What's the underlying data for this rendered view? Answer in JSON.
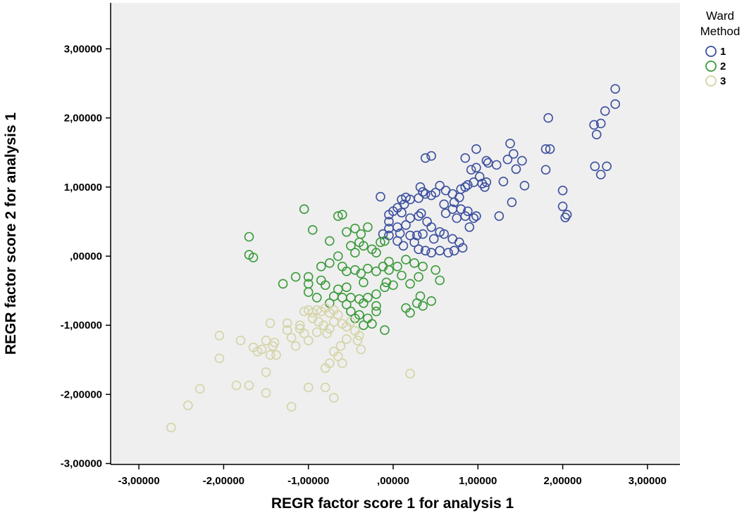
{
  "chart_data": {
    "type": "scatter",
    "xlabel": "REGR factor score   1 for analysis 1",
    "ylabel": "REGR factor score   2 for analysis 1",
    "xlim": [
      -3.3,
      3.4
    ],
    "ylim": [
      -3.0,
      3.6
    ],
    "x_ticks": [
      "-3,00000",
      "-2,00000",
      "-1,00000",
      ",00000",
      "1,00000",
      "2,00000",
      "3,00000"
    ],
    "x_tick_values": [
      -3,
      -2,
      -1,
      0,
      1,
      2,
      3
    ],
    "y_ticks": [
      "3,00000",
      "2,00000",
      "1,00000",
      ",00000",
      "-1,00000",
      "-2,00000",
      "-3,00000"
    ],
    "y_tick_values": [
      3,
      2,
      1,
      0,
      -1,
      -2,
      -3
    ],
    "grid": false,
    "legend": {
      "title_line1": "Ward",
      "title_line2": "Method",
      "position": "top-right"
    },
    "background_color": "#efefef",
    "series": [
      {
        "name": "1",
        "color": "#3b4f9e",
        "points": [
          [
            2.62,
            2.42
          ],
          [
            2.62,
            2.2
          ],
          [
            2.5,
            2.1
          ],
          [
            2.45,
            1.92
          ],
          [
            2.37,
            1.9
          ],
          [
            2.4,
            1.76
          ],
          [
            1.83,
            2.0
          ],
          [
            2.52,
            1.3
          ],
          [
            2.38,
            1.3
          ],
          [
            2.45,
            1.18
          ],
          [
            2.0,
            0.95
          ],
          [
            2.0,
            0.72
          ],
          [
            2.05,
            0.6
          ],
          [
            2.03,
            0.56
          ],
          [
            1.85,
            1.55
          ],
          [
            1.8,
            1.55
          ],
          [
            1.8,
            1.25
          ],
          [
            1.55,
            1.02
          ],
          [
            1.4,
            0.78
          ],
          [
            1.25,
            0.58
          ],
          [
            1.38,
            1.63
          ],
          [
            1.42,
            1.48
          ],
          [
            1.35,
            1.4
          ],
          [
            1.45,
            1.26
          ],
          [
            1.22,
            1.32
          ],
          [
            1.1,
            1.38
          ],
          [
            1.12,
            1.35
          ],
          [
            0.98,
            1.55
          ],
          [
            0.85,
            1.42
          ],
          [
            0.98,
            1.28
          ],
          [
            0.92,
            1.25
          ],
          [
            1.02,
            1.15
          ],
          [
            0.95,
            1.07
          ],
          [
            1.05,
            1.05
          ],
          [
            1.08,
            1.0
          ],
          [
            0.88,
            1.03
          ],
          [
            0.85,
            1.0
          ],
          [
            0.8,
            0.97
          ],
          [
            0.78,
            0.85
          ],
          [
            0.7,
            0.9
          ],
          [
            0.62,
            0.95
          ],
          [
            0.55,
            1.02
          ],
          [
            0.5,
            0.92
          ],
          [
            0.45,
            0.88
          ],
          [
            0.35,
            0.93
          ],
          [
            0.3,
            0.84
          ],
          [
            0.38,
            1.42
          ],
          [
            0.45,
            1.45
          ],
          [
            0.32,
            1.0
          ],
          [
            0.38,
            0.9
          ],
          [
            0.33,
            0.62
          ],
          [
            0.3,
            0.58
          ],
          [
            0.15,
            0.85
          ],
          [
            0.1,
            0.82
          ],
          [
            0.13,
            0.75
          ],
          [
            0.2,
            0.82
          ],
          [
            0.05,
            0.7
          ],
          [
            -0.15,
            0.86
          ],
          [
            -0.05,
            0.6
          ],
          [
            -0.05,
            0.5
          ],
          [
            -0.05,
            0.4
          ],
          [
            0.0,
            0.65
          ],
          [
            0.1,
            0.63
          ],
          [
            0.2,
            0.55
          ],
          [
            0.15,
            0.45
          ],
          [
            0.05,
            0.42
          ],
          [
            0.08,
            0.33
          ],
          [
            0.2,
            0.3
          ],
          [
            0.28,
            0.3
          ],
          [
            0.4,
            0.5
          ],
          [
            0.45,
            0.42
          ],
          [
            0.35,
            0.32
          ],
          [
            0.48,
            0.25
          ],
          [
            0.55,
            0.35
          ],
          [
            0.6,
            0.32
          ],
          [
            0.7,
            0.25
          ],
          [
            0.78,
            0.2
          ],
          [
            0.82,
            0.12
          ],
          [
            0.72,
            0.08
          ],
          [
            0.65,
            0.05
          ],
          [
            0.55,
            0.08
          ],
          [
            0.45,
            0.05
          ],
          [
            0.38,
            0.08
          ],
          [
            0.3,
            0.1
          ],
          [
            0.25,
            0.2
          ],
          [
            0.12,
            0.15
          ],
          [
            0.05,
            0.22
          ],
          [
            -0.05,
            0.3
          ],
          [
            -0.12,
            0.32
          ],
          [
            0.62,
            0.62
          ],
          [
            0.7,
            0.68
          ],
          [
            0.75,
            0.55
          ],
          [
            0.85,
            0.58
          ],
          [
            0.9,
            0.42
          ],
          [
            0.95,
            0.55
          ],
          [
            0.6,
            0.75
          ],
          [
            0.72,
            0.78
          ],
          [
            0.8,
            0.68
          ],
          [
            0.88,
            0.65
          ],
          [
            0.98,
            0.58
          ],
          [
            1.3,
            1.08
          ],
          [
            1.52,
            1.38
          ],
          [
            1.1,
            1.07
          ]
        ]
      },
      {
        "name": "2",
        "color": "#3a9a3a",
        "points": [
          [
            -1.05,
            0.68
          ],
          [
            -1.7,
            0.28
          ],
          [
            -1.7,
            0.02
          ],
          [
            -1.65,
            -0.02
          ],
          [
            -0.95,
            0.38
          ],
          [
            -0.75,
            0.22
          ],
          [
            -0.65,
            0.58
          ],
          [
            -0.6,
            0.6
          ],
          [
            -0.55,
            0.35
          ],
          [
            -0.45,
            0.4
          ],
          [
            -0.38,
            0.32
          ],
          [
            -0.3,
            0.42
          ],
          [
            -0.5,
            0.15
          ],
          [
            -0.4,
            0.2
          ],
          [
            -0.35,
            0.15
          ],
          [
            -0.25,
            0.1
          ],
          [
            -0.15,
            0.2
          ],
          [
            -0.1,
            0.22
          ],
          [
            -0.2,
            0.05
          ],
          [
            -0.45,
            0.05
          ],
          [
            -0.65,
            0.0
          ],
          [
            -0.75,
            -0.1
          ],
          [
            -0.85,
            -0.15
          ],
          [
            -0.6,
            -0.15
          ],
          [
            -0.55,
            -0.22
          ],
          [
            -0.45,
            -0.2
          ],
          [
            -0.38,
            -0.25
          ],
          [
            -0.3,
            -0.18
          ],
          [
            -0.2,
            -0.22
          ],
          [
            -0.12,
            -0.15
          ],
          [
            -0.05,
            -0.2
          ],
          [
            0.05,
            -0.15
          ],
          [
            0.15,
            -0.05
          ],
          [
            0.25,
            -0.1
          ],
          [
            0.35,
            -0.15
          ],
          [
            0.5,
            -0.2
          ],
          [
            0.55,
            -0.35
          ],
          [
            -1.0,
            -0.3
          ],
          [
            -1.15,
            -0.3
          ],
          [
            -1.3,
            -0.4
          ],
          [
            -1.0,
            -0.4
          ],
          [
            -0.85,
            -0.35
          ],
          [
            -0.8,
            -0.42
          ],
          [
            -0.65,
            -0.48
          ],
          [
            -0.7,
            -0.58
          ],
          [
            -0.6,
            -0.6
          ],
          [
            -0.5,
            -0.6
          ],
          [
            -0.4,
            -0.62
          ],
          [
            -0.35,
            -0.68
          ],
          [
            -0.3,
            -0.6
          ],
          [
            -0.2,
            -0.55
          ],
          [
            -0.1,
            -0.45
          ],
          [
            -0.08,
            -0.38
          ],
          [
            0.0,
            -0.42
          ],
          [
            -1.0,
            -0.52
          ],
          [
            -0.9,
            -0.6
          ],
          [
            -0.75,
            -0.68
          ],
          [
            -0.55,
            -0.7
          ],
          [
            -0.5,
            -0.8
          ],
          [
            -0.4,
            -0.85
          ],
          [
            -0.45,
            -0.9
          ],
          [
            -0.3,
            -0.9
          ],
          [
            -0.25,
            -0.98
          ],
          [
            -0.35,
            -1.0
          ],
          [
            -0.2,
            -0.8
          ],
          [
            0.15,
            -0.75
          ],
          [
            0.2,
            -0.82
          ],
          [
            0.28,
            -0.68
          ],
          [
            0.32,
            -0.58
          ],
          [
            0.35,
            -0.72
          ],
          [
            0.45,
            -0.65
          ],
          [
            -0.1,
            -1.07
          ],
          [
            -0.2,
            -0.72
          ],
          [
            -0.35,
            -0.38
          ],
          [
            -0.55,
            -0.45
          ],
          [
            0.2,
            -0.4
          ],
          [
            0.3,
            -0.3
          ],
          [
            0.1,
            -0.28
          ],
          [
            -0.05,
            -0.08
          ]
        ]
      },
      {
        "name": "3",
        "color": "#d4d3a6",
        "points": [
          [
            -2.62,
            -2.48
          ],
          [
            -2.42,
            -2.16
          ],
          [
            -2.28,
            -1.92
          ],
          [
            -2.05,
            -1.15
          ],
          [
            -2.05,
            -1.48
          ],
          [
            -1.8,
            -1.22
          ],
          [
            -1.85,
            -1.87
          ],
          [
            -1.7,
            -1.87
          ],
          [
            -1.65,
            -1.32
          ],
          [
            -1.6,
            -1.38
          ],
          [
            -1.55,
            -1.35
          ],
          [
            -1.42,
            -1.3
          ],
          [
            -1.45,
            -1.43
          ],
          [
            -1.38,
            -1.43
          ],
          [
            -1.4,
            -1.25
          ],
          [
            -1.5,
            -1.22
          ],
          [
            -1.5,
            -1.68
          ],
          [
            -1.45,
            -0.97
          ],
          [
            -1.5,
            -1.98
          ],
          [
            -1.25,
            -0.97
          ],
          [
            -1.25,
            -1.07
          ],
          [
            -1.2,
            -1.18
          ],
          [
            -1.2,
            -2.18
          ],
          [
            -1.0,
            -1.9
          ],
          [
            -0.8,
            -1.9
          ],
          [
            -0.7,
            -2.05
          ],
          [
            -1.05,
            -1.12
          ],
          [
            -1.1,
            -1.05
          ],
          [
            -1.05,
            -0.8
          ],
          [
            -1.0,
            -0.78
          ],
          [
            -0.95,
            -0.82
          ],
          [
            -0.9,
            -0.78
          ],
          [
            -0.85,
            -0.8
          ],
          [
            -0.8,
            -0.75
          ],
          [
            -0.75,
            -0.82
          ],
          [
            -0.7,
            -0.78
          ],
          [
            -0.65,
            -0.85
          ],
          [
            -0.95,
            -0.9
          ],
          [
            -0.88,
            -0.95
          ],
          [
            -0.82,
            -1.0
          ],
          [
            -0.75,
            -1.05
          ],
          [
            -0.7,
            -0.95
          ],
          [
            -0.6,
            -0.98
          ],
          [
            -0.55,
            -1.02
          ],
          [
            -0.5,
            -0.95
          ],
          [
            -0.45,
            -1.08
          ],
          [
            -0.4,
            -1.15
          ],
          [
            -0.55,
            -1.2
          ],
          [
            -0.62,
            -1.3
          ],
          [
            -0.7,
            -1.38
          ],
          [
            -0.75,
            -1.55
          ],
          [
            -0.8,
            -1.62
          ],
          [
            -0.65,
            -1.45
          ],
          [
            -0.6,
            -1.55
          ],
          [
            -0.42,
            -1.22
          ],
          [
            -0.38,
            -1.35
          ],
          [
            -1.0,
            -1.22
          ],
          [
            -1.15,
            -1.3
          ],
          [
            0.2,
            -1.7
          ],
          [
            -0.9,
            -1.1
          ],
          [
            -1.1,
            -1.0
          ],
          [
            -0.78,
            -1.12
          ]
        ]
      }
    ]
  }
}
